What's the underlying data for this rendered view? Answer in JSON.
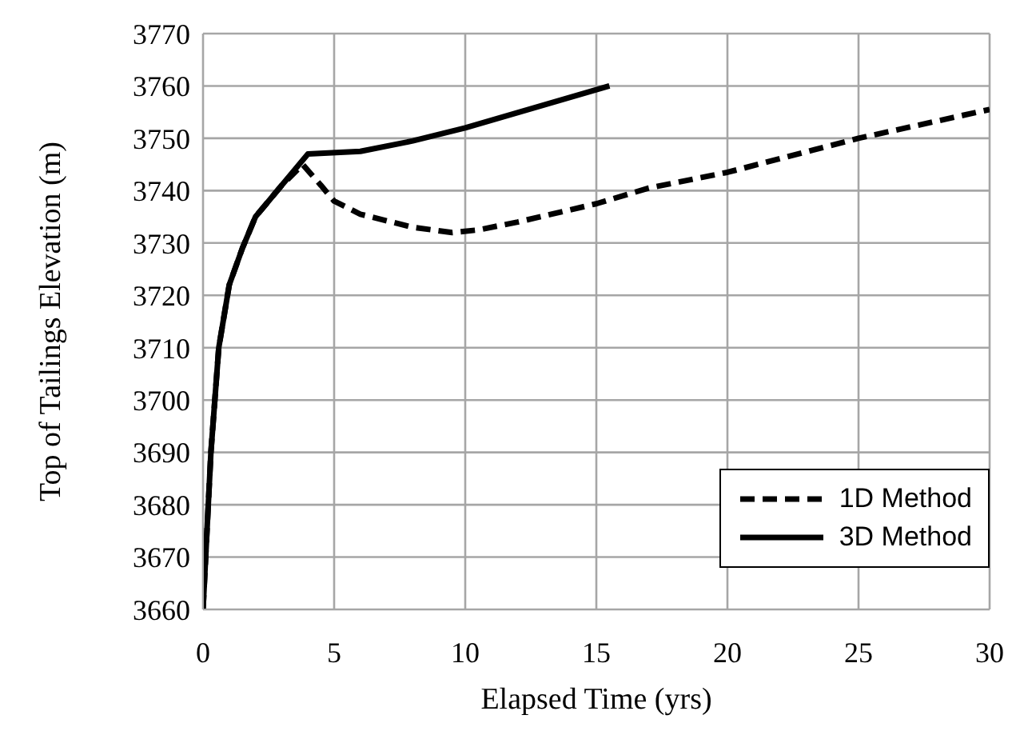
{
  "chart_data": {
    "type": "line",
    "xlabel": "Elapsed Time (yrs)",
    "ylabel": "Top of Tailings Elevation (m)",
    "xlim": [
      0,
      30
    ],
    "xticks": [
      0,
      5,
      10,
      15,
      20,
      25,
      30
    ],
    "ylim": [
      3660,
      3770
    ],
    "yticks": [
      3660,
      3670,
      3680,
      3690,
      3700,
      3710,
      3720,
      3730,
      3740,
      3750,
      3760,
      3770
    ],
    "grid": true,
    "legend": "bottom right",
    "marker": "none",
    "series": [
      {
        "name": "1D Method",
        "color": "#000000",
        "line_style": "dashed",
        "x": [
          0,
          0.1,
          0.3,
          0.6,
          1,
          1.5,
          2,
          3,
          3.8,
          4.5,
          5,
          6,
          8,
          9.5,
          10.5,
          12,
          15,
          17,
          20,
          25,
          30
        ],
        "values": [
          3660,
          3670,
          3690,
          3710,
          3722,
          3729,
          3735,
          3741,
          3745,
          3741,
          3738,
          3735.5,
          3733,
          3732,
          3732.5,
          3734,
          3737.5,
          3740.5,
          3743.5,
          3750,
          3755.5
        ]
      },
      {
        "name": "3D Method",
        "color": "#000000",
        "line_style": "solid",
        "x": [
          0,
          0.1,
          0.3,
          0.6,
          1,
          1.5,
          2,
          3,
          4,
          6,
          8,
          10,
          15.5
        ],
        "values": [
          3660,
          3670,
          3690,
          3710,
          3722,
          3729,
          3735,
          3741,
          3747,
          3747.5,
          3749.5,
          3752,
          3760
        ]
      }
    ]
  }
}
